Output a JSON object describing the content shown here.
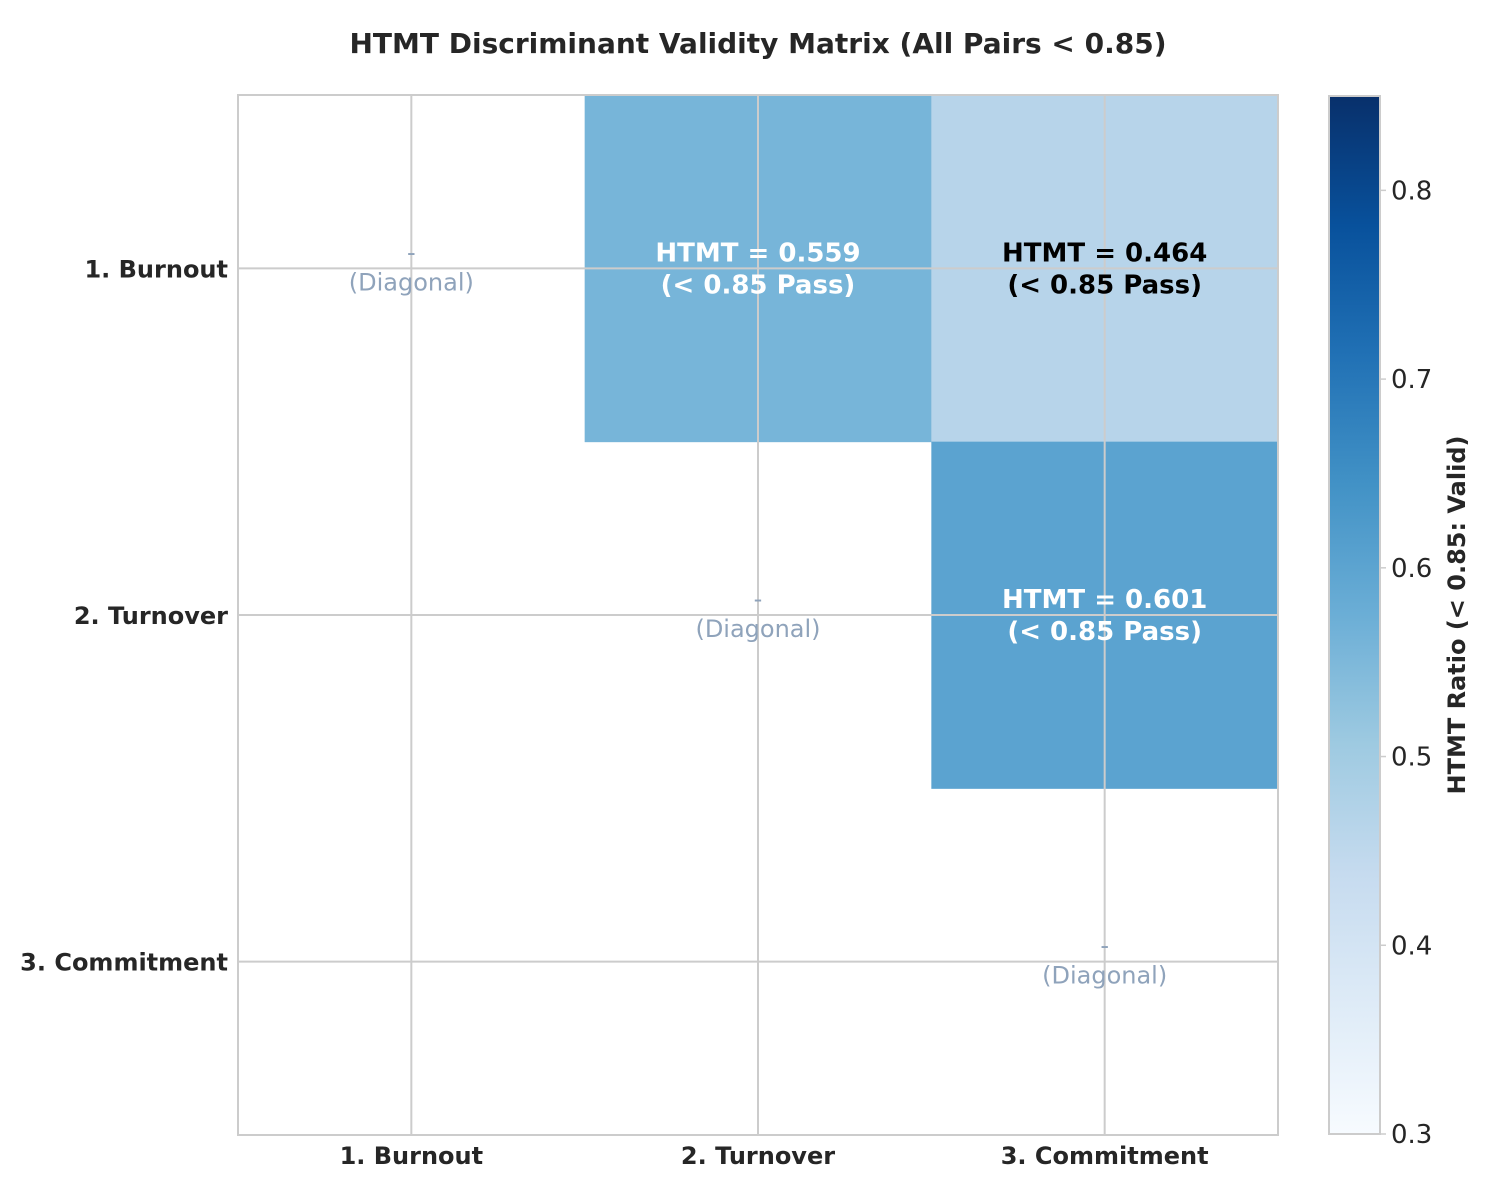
{
  "chart_data": {
    "type": "heatmap",
    "title": "HTMT Discriminant Validity Matrix (All Pairs < 0.85)",
    "rows": [
      "1. Burnout",
      "2. Turnover",
      "3. Commitment"
    ],
    "columns": [
      "1. Burnout",
      "2. Turnover",
      "3. Commitment"
    ],
    "cells": [
      {
        "row": 0,
        "col": 0,
        "diagonal": true,
        "dash": "-",
        "label": "(Diagonal)"
      },
      {
        "row": 0,
        "col": 1,
        "value": 0.559,
        "line1": "HTMT = 0.559",
        "line2": "(< 0.85 Pass)",
        "text_color": "#ffffff"
      },
      {
        "row": 0,
        "col": 2,
        "value": 0.464,
        "line1": "HTMT = 0.464",
        "line2": "(< 0.85 Pass)",
        "text_color": "#000000"
      },
      {
        "row": 1,
        "col": 1,
        "diagonal": true,
        "dash": "-",
        "label": "(Diagonal)"
      },
      {
        "row": 1,
        "col": 2,
        "value": 0.601,
        "line1": "HTMT = 0.601",
        "line2": "(< 0.85 Pass)",
        "text_color": "#ffffff"
      },
      {
        "row": 2,
        "col": 2,
        "diagonal": true,
        "dash": "-",
        "label": "(Diagonal)"
      }
    ],
    "colorbar": {
      "label": "HTMT Ratio (< 0.85: Valid)",
      "range": [
        0.3,
        0.85
      ],
      "ticks": [
        0.3,
        0.4,
        0.5,
        0.6,
        0.7,
        0.8
      ],
      "tick_labels": [
        "0.3",
        "0.4",
        "0.5",
        "0.6",
        "0.7",
        "0.8"
      ],
      "colormap": "Blues"
    },
    "grid": true
  }
}
